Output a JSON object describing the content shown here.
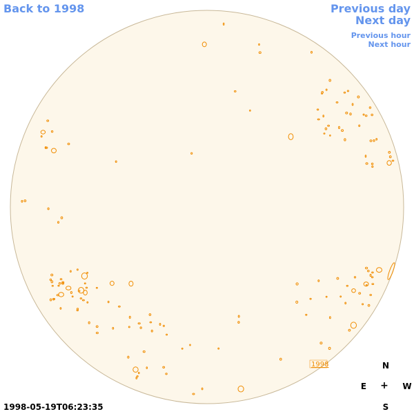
{
  "nav": {
    "back": "Back to 1998",
    "prev_day": "Previous day",
    "next_day": "Next day",
    "prev_hour": "Previous hour",
    "next_hour": "Next hour"
  },
  "region_label": "1998",
  "compass": {
    "n": "N",
    "s": "S",
    "e": "E",
    "w": "W",
    "center": "+"
  },
  "timestamp": "1998-05-19T06:23:35",
  "colors": {
    "link": "#6495ed",
    "disk_fill": "#fdf7ea",
    "disk_stroke": "#c8b898",
    "contour": "#f08c00"
  }
}
